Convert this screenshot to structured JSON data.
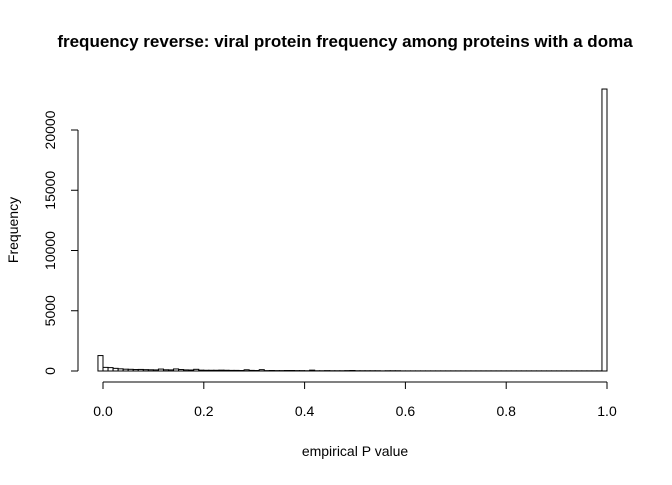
{
  "chart_data": {
    "type": "bar",
    "title": "frequency reverse: viral protein frequency among proteins with a doma",
    "xlabel": "empirical P value",
    "ylabel": "Frequency",
    "xlim": [
      0,
      1
    ],
    "ylim": [
      0,
      20000
    ],
    "x_ticks": [
      "0.0",
      "0.2",
      "0.4",
      "0.6",
      "0.8",
      "1.0"
    ],
    "y_ticks": [
      "0",
      "5000",
      "10000",
      "15000",
      "20000"
    ],
    "bin_width": 0.01,
    "bins_start": -0.01,
    "values": [
      1280,
      300,
      280,
      220,
      180,
      150,
      140,
      120,
      130,
      110,
      100,
      90,
      160,
      100,
      90,
      170,
      120,
      90,
      80,
      140,
      70,
      60,
      60,
      60,
      70,
      60,
      50,
      50,
      40,
      100,
      50,
      40,
      110,
      30,
      40,
      30,
      30,
      40,
      40,
      30,
      30,
      20,
      70,
      20,
      20,
      30,
      20,
      20,
      20,
      30,
      40,
      20,
      20,
      20,
      20,
      20,
      10,
      20,
      20,
      20,
      10,
      10,
      10,
      10,
      10,
      10,
      10,
      10,
      10,
      10,
      10,
      10,
      10,
      10,
      10,
      10,
      10,
      10,
      10,
      10,
      10,
      10,
      10,
      10,
      10,
      10,
      10,
      10,
      10,
      10,
      10,
      10,
      10,
      10,
      10,
      10,
      10,
      10,
      10,
      10,
      23400
    ]
  }
}
